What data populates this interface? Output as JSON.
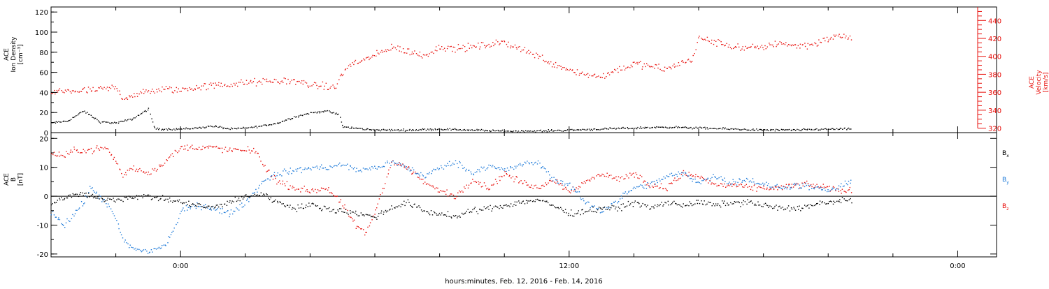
{
  "colors": {
    "axis": "#000000",
    "density": "#000000",
    "velocity": "#e8100c",
    "bx": "#000000",
    "by": "#1a78d8",
    "bz": "#e8100c"
  },
  "xaxis": {
    "label": "hours:minutes, Feb. 12, 2016 - Feb. 14, 2016",
    "range_hours": [
      -4.0,
      25.2
    ],
    "major_ticks": [
      {
        "hour": 0,
        "label": "0:00"
      },
      {
        "hour": 12,
        "label": "12:00"
      },
      {
        "hour": 24,
        "label": "0:00"
      }
    ],
    "minor_step_hours": 2
  },
  "chart_data": [
    {
      "type": "scatter",
      "name": "density-velocity-panel",
      "left_axis": {
        "label_lines": [
          "ACE",
          "Ion Density",
          "[cm⁻³]"
        ],
        "range": [
          0,
          125
        ],
        "ticks": [
          0,
          20,
          40,
          60,
          80,
          100,
          120
        ],
        "tick_labels": [
          "0",
          "20",
          "40",
          "60",
          "80",
          "100",
          "120"
        ]
      },
      "right_axis": {
        "label_lines": [
          "ACE",
          "Velocity",
          "[km/s]"
        ],
        "range": [
          315,
          455
        ],
        "ticks": [
          320,
          340,
          360,
          380,
          400,
          420,
          440
        ],
        "tick_labels": [
          "320",
          "340",
          "360",
          "380",
          "400",
          "420",
          "440"
        ]
      },
      "series": [
        {
          "key": "density",
          "axis": "left",
          "scatter": 1.4,
          "x": [
            -4.0,
            -3.5,
            -3.0,
            -2.5,
            -2.0,
            -1.5,
            -1.0,
            -0.8,
            -0.5,
            0.0,
            0.5,
            1.0,
            1.5,
            2.0,
            2.5,
            3.0,
            3.5,
            4.0,
            4.5,
            4.9,
            5.0,
            6.0,
            7.0,
            8.0,
            9.0,
            10.0,
            11.0,
            12.0,
            13.0,
            14.0,
            15.0,
            16.0,
            17.0,
            18.0,
            19.0,
            20.0,
            20.7
          ],
          "y": [
            10,
            12,
            22,
            11,
            10,
            14,
            24,
            4,
            4,
            4,
            5,
            7,
            4,
            5,
            7,
            10,
            16,
            20,
            22,
            18,
            6,
            3,
            3,
            4,
            3,
            2,
            2,
            3,
            4,
            5,
            6,
            5,
            4,
            3,
            3,
            4,
            4
          ]
        },
        {
          "key": "velocity",
          "axis": "right",
          "scatter": 6,
          "x": [
            -4.0,
            -3.6,
            -3.0,
            -2.5,
            -2.0,
            -1.8,
            -1.5,
            -1.0,
            -0.5,
            0.0,
            0.5,
            1.0,
            1.5,
            2.0,
            2.5,
            3.0,
            3.5,
            4.0,
            4.5,
            4.8,
            4.9,
            5.3,
            5.6,
            6.0,
            6.5,
            7.0,
            7.5,
            8.0,
            8.5,
            9.0,
            9.5,
            10.0,
            10.5,
            11.0,
            11.5,
            12.0,
            12.5,
            13.0,
            13.5,
            14.0,
            14.5,
            15.0,
            15.5,
            15.7,
            15.8,
            16.0,
            16.5,
            17.0,
            17.5,
            18.0,
            18.5,
            19.0,
            19.5,
            20.0,
            20.5,
            20.7
          ],
          "y": [
            360,
            362,
            362,
            363,
            366,
            354,
            357,
            361,
            364,
            363,
            366,
            368,
            369,
            371,
            372,
            373,
            373,
            369,
            366,
            366,
            378,
            393,
            396,
            401,
            411,
            406,
            401,
            411,
            409,
            411,
            413,
            416,
            409,
            401,
            392,
            386,
            380,
            378,
            386,
            392,
            389,
            386,
            394,
            396,
            397,
            421,
            416,
            412,
            409,
            411,
            416,
            412,
            414,
            420,
            424,
            419
          ]
        }
      ]
    },
    {
      "type": "scatter",
      "name": "magnetic-field-panel",
      "left_axis": {
        "label_lines": [
          "ACE",
          "B",
          "[nT]"
        ],
        "range": [
          -21,
          22
        ],
        "ticks": [
          -20,
          -10,
          0,
          10,
          20
        ],
        "tick_labels": [
          "-20",
          "-10",
          "0",
          "10",
          "20"
        ]
      },
      "legend": [
        {
          "key": "bx",
          "label": "B",
          "sub": "x"
        },
        {
          "key": "by",
          "label": "B",
          "sub": "y"
        },
        {
          "key": "bz",
          "label": "B",
          "sub": "z"
        }
      ],
      "series": [
        {
          "key": "bz",
          "axis": "left",
          "scatter": 1.6,
          "x": [
            -4.0,
            -3.6,
            -3.3,
            -3.0,
            -2.5,
            -2.3,
            -2.0,
            -1.8,
            -1.5,
            -1.0,
            -0.5,
            0.0,
            0.5,
            1.0,
            1.5,
            2.0,
            2.3,
            2.6,
            3.0,
            3.5,
            4.0,
            4.5,
            5.0,
            5.4,
            5.7,
            6.0,
            6.3,
            6.5,
            7.0,
            7.5,
            8.0,
            8.5,
            9.0,
            9.5,
            10.0,
            10.5,
            11.0,
            11.5,
            12.0,
            12.5,
            13.0,
            13.5,
            14.0,
            14.5,
            15.0,
            15.5,
            16.0,
            16.5,
            17.0,
            17.5,
            18.0,
            18.5,
            19.0,
            19.5,
            20.0,
            20.5,
            20.7
          ],
          "y": [
            15,
            14,
            16,
            16,
            16.5,
            17,
            12,
            7,
            10,
            8,
            12,
            17,
            17,
            17,
            16,
            16,
            16,
            10,
            5,
            3,
            2,
            3,
            -3,
            -10,
            -13,
            -5,
            5,
            12,
            10,
            5,
            2,
            0,
            6,
            3,
            8,
            5,
            3,
            6,
            2,
            5,
            8,
            6,
            8,
            4,
            3,
            8,
            7,
            4,
            4,
            3,
            3,
            3,
            4,
            4,
            3,
            2,
            2
          ]
        },
        {
          "key": "by",
          "axis": "left",
          "scatter": 1.6,
          "x": [
            -4.0,
            -3.6,
            -3.0,
            -2.8,
            -2.5,
            -2.2,
            -2.0,
            -1.8,
            -1.5,
            -1.0,
            -0.5,
            -0.2,
            0.0,
            0.5,
            1.0,
            1.5,
            2.0,
            2.3,
            2.6,
            3.0,
            3.5,
            4.0,
            4.5,
            5.0,
            5.5,
            6.0,
            6.5,
            7.0,
            7.5,
            8.0,
            8.5,
            9.0,
            9.5,
            10.0,
            10.5,
            11.0,
            11.5,
            12.0,
            12.5,
            13.0,
            13.5,
            14.0,
            14.5,
            15.0,
            15.5,
            16.0,
            16.5,
            17.0,
            17.5,
            18.0,
            18.5,
            19.0,
            19.5,
            20.0,
            20.5,
            20.7
          ],
          "y": [
            -5,
            -10,
            -2,
            3,
            0,
            -4,
            -8,
            -15,
            -18,
            -19,
            -17,
            -11,
            -5,
            -3,
            -4,
            -6,
            -2,
            2,
            6,
            8,
            9,
            10,
            10,
            11,
            9,
            10,
            12,
            10,
            7,
            10,
            12,
            8,
            11,
            9,
            11,
            12,
            6,
            4,
            -2,
            -5,
            -1,
            3,
            4,
            7,
            8,
            5,
            7,
            5,
            6,
            4,
            3,
            4,
            3,
            2,
            4,
            5
          ]
        },
        {
          "key": "bx",
          "axis": "left",
          "scatter": 1.5,
          "x": [
            -4.0,
            -3.5,
            -3.0,
            -2.5,
            -2.0,
            -1.5,
            -1.0,
            -0.5,
            0.0,
            0.5,
            1.0,
            1.5,
            2.0,
            2.5,
            3.0,
            3.5,
            4.0,
            4.5,
            5.0,
            5.5,
            6.0,
            6.5,
            7.0,
            7.5,
            8.0,
            8.5,
            9.0,
            9.5,
            10.0,
            10.5,
            11.0,
            11.5,
            12.0,
            12.5,
            13.0,
            13.5,
            14.0,
            14.5,
            15.0,
            15.5,
            16.0,
            16.5,
            17.0,
            17.5,
            18.0,
            18.5,
            19.0,
            19.5,
            20.0,
            20.5,
            20.7
          ],
          "y": [
            -2,
            0,
            1,
            -1,
            -1,
            0,
            0,
            -1,
            -2,
            -3,
            -4,
            -2,
            0,
            1,
            -2,
            -4,
            -3,
            -4,
            -5,
            -6,
            -7,
            -4,
            -2,
            -5,
            -6,
            -7,
            -5,
            -4,
            -3,
            -2,
            -1,
            -3,
            -6,
            -5,
            -4,
            -4,
            -2,
            -4,
            -2,
            -3,
            -2,
            -3,
            -2,
            -2,
            -3,
            -4,
            -4,
            -3,
            -2,
            -1,
            -2
          ]
        }
      ]
    }
  ]
}
